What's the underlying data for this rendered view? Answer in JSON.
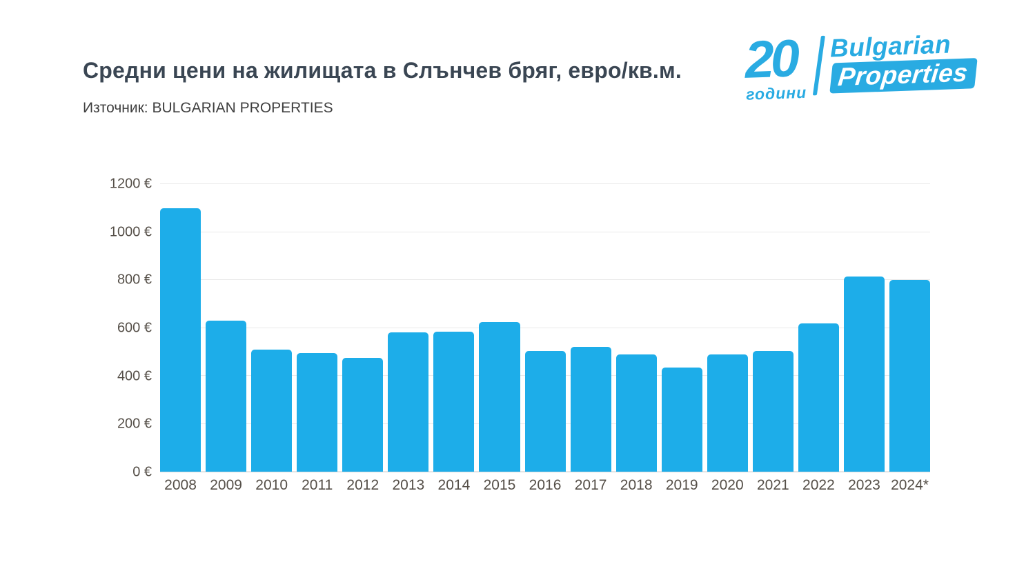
{
  "header": {
    "title": "Средни цени на жилищата в Слънчев бряг, евро/кв.м.",
    "source": "Източник: BULGARIAN PROPERTIES"
  },
  "logo": {
    "years_number": "20",
    "years_label": "години",
    "brand_line1": "Bulgarian",
    "brand_line2": "Properties"
  },
  "theme": {
    "brand_blue": "#29abe2",
    "bar_blue": "#1dade9",
    "title_color": "#3a4653",
    "axis_label_color": "#554f48"
  },
  "chart_data": {
    "type": "bar",
    "title": "Средни цени на жилищата в Слънчев бряг, евро/кв.м.",
    "subtitle": "Източник: BULGARIAN PROPERTIES",
    "unit": "евро/кв.м.",
    "categories": [
      "2008",
      "2009",
      "2010",
      "2011",
      "2012",
      "2013",
      "2014",
      "2015",
      "2016",
      "2017",
      "2018",
      "2019",
      "2020",
      "2021",
      "2022",
      "2023",
      "2024*"
    ],
    "values": [
      1100,
      630,
      510,
      495,
      475,
      580,
      585,
      625,
      505,
      520,
      490,
      435,
      490,
      505,
      620,
      815,
      800
    ],
    "ylim": [
      0,
      1200
    ],
    "yticks": [
      {
        "value": 0,
        "label": "0 €"
      },
      {
        "value": 200,
        "label": "200 €"
      },
      {
        "value": 400,
        "label": "400 €"
      },
      {
        "value": 600,
        "label": "600 €"
      },
      {
        "value": 800,
        "label": "800 €"
      },
      {
        "value": 1000,
        "label": "1000 €"
      },
      {
        "value": 1200,
        "label": "1200 €"
      }
    ],
    "grid": true,
    "legend": false,
    "bar_color": "#1dade9"
  }
}
